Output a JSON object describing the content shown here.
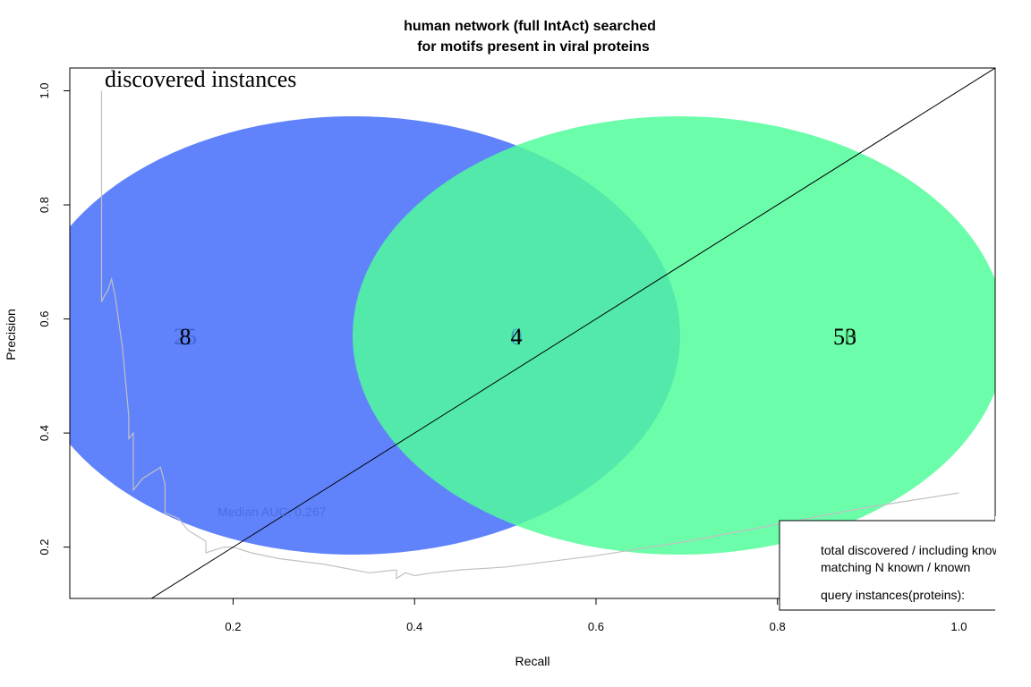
{
  "chart_data": {
    "type": "line",
    "title_line1": "human network (full IntAct) searched",
    "title_line2": "for motifs present in viral proteins",
    "xlabel": "Recall",
    "ylabel": "Precision",
    "xlim": [
      0.02,
      1.04
    ],
    "ylim": [
      0.11,
      1.04
    ],
    "x_ticks": [
      {
        "value": 0.2,
        "label": "0.2"
      },
      {
        "value": 0.4,
        "label": "0.4"
      },
      {
        "value": 0.6,
        "label": "0.6"
      },
      {
        "value": 0.8,
        "label": "0.8"
      },
      {
        "value": 1.0,
        "label": "1.0"
      }
    ],
    "y_ticks": [
      {
        "value": 0.2,
        "label": "0.2"
      },
      {
        "value": 0.4,
        "label": "0.4"
      },
      {
        "value": 0.6,
        "label": "0.6"
      },
      {
        "value": 0.8,
        "label": "0.8"
      },
      {
        "value": 1.0,
        "label": "1.0"
      }
    ],
    "series": [
      {
        "color": "#c0c0c0",
        "x": [
          0.055,
          0.055,
          0.058,
          0.062,
          0.066,
          0.07,
          0.078,
          0.085,
          0.085,
          0.09,
          0.09,
          0.1,
          0.12,
          0.125,
          0.125,
          0.14,
          0.15,
          0.16,
          0.17,
          0.17,
          0.19,
          0.2,
          0.22,
          0.25,
          0.3,
          0.35,
          0.38,
          0.38,
          0.39,
          0.4,
          0.42,
          0.45,
          0.5,
          0.55,
          0.6,
          0.7,
          0.8,
          0.9,
          1.0
        ],
        "y": [
          1.0,
          0.63,
          0.64,
          0.65,
          0.67,
          0.64,
          0.55,
          0.43,
          0.39,
          0.4,
          0.3,
          0.32,
          0.34,
          0.31,
          0.26,
          0.25,
          0.23,
          0.22,
          0.21,
          0.19,
          0.2,
          0.2,
          0.19,
          0.18,
          0.17,
          0.155,
          0.16,
          0.145,
          0.155,
          0.15,
          0.155,
          0.16,
          0.165,
          0.175,
          0.185,
          0.21,
          0.24,
          0.27,
          0.295
        ]
      }
    ],
    "diagonal": {
      "x": [
        0.0,
        1.04
      ],
      "y": [
        0.0,
        1.04
      ],
      "color": "#000000"
    },
    "annotation": "Median AUC: 0.267",
    "venn": {
      "title": "discovered instances",
      "left_color": "#4a72fb",
      "right_color": "#50fd9a",
      "left_labels": [
        "25",
        "8"
      ],
      "center_labels": [
        "0",
        "4"
      ],
      "right_labels": [
        "50",
        "53"
      ]
    },
    "legend": {
      "line1": "total discovered / including known",
      "line2": "matching N known / known",
      "line3": "query instances(proteins):"
    }
  }
}
